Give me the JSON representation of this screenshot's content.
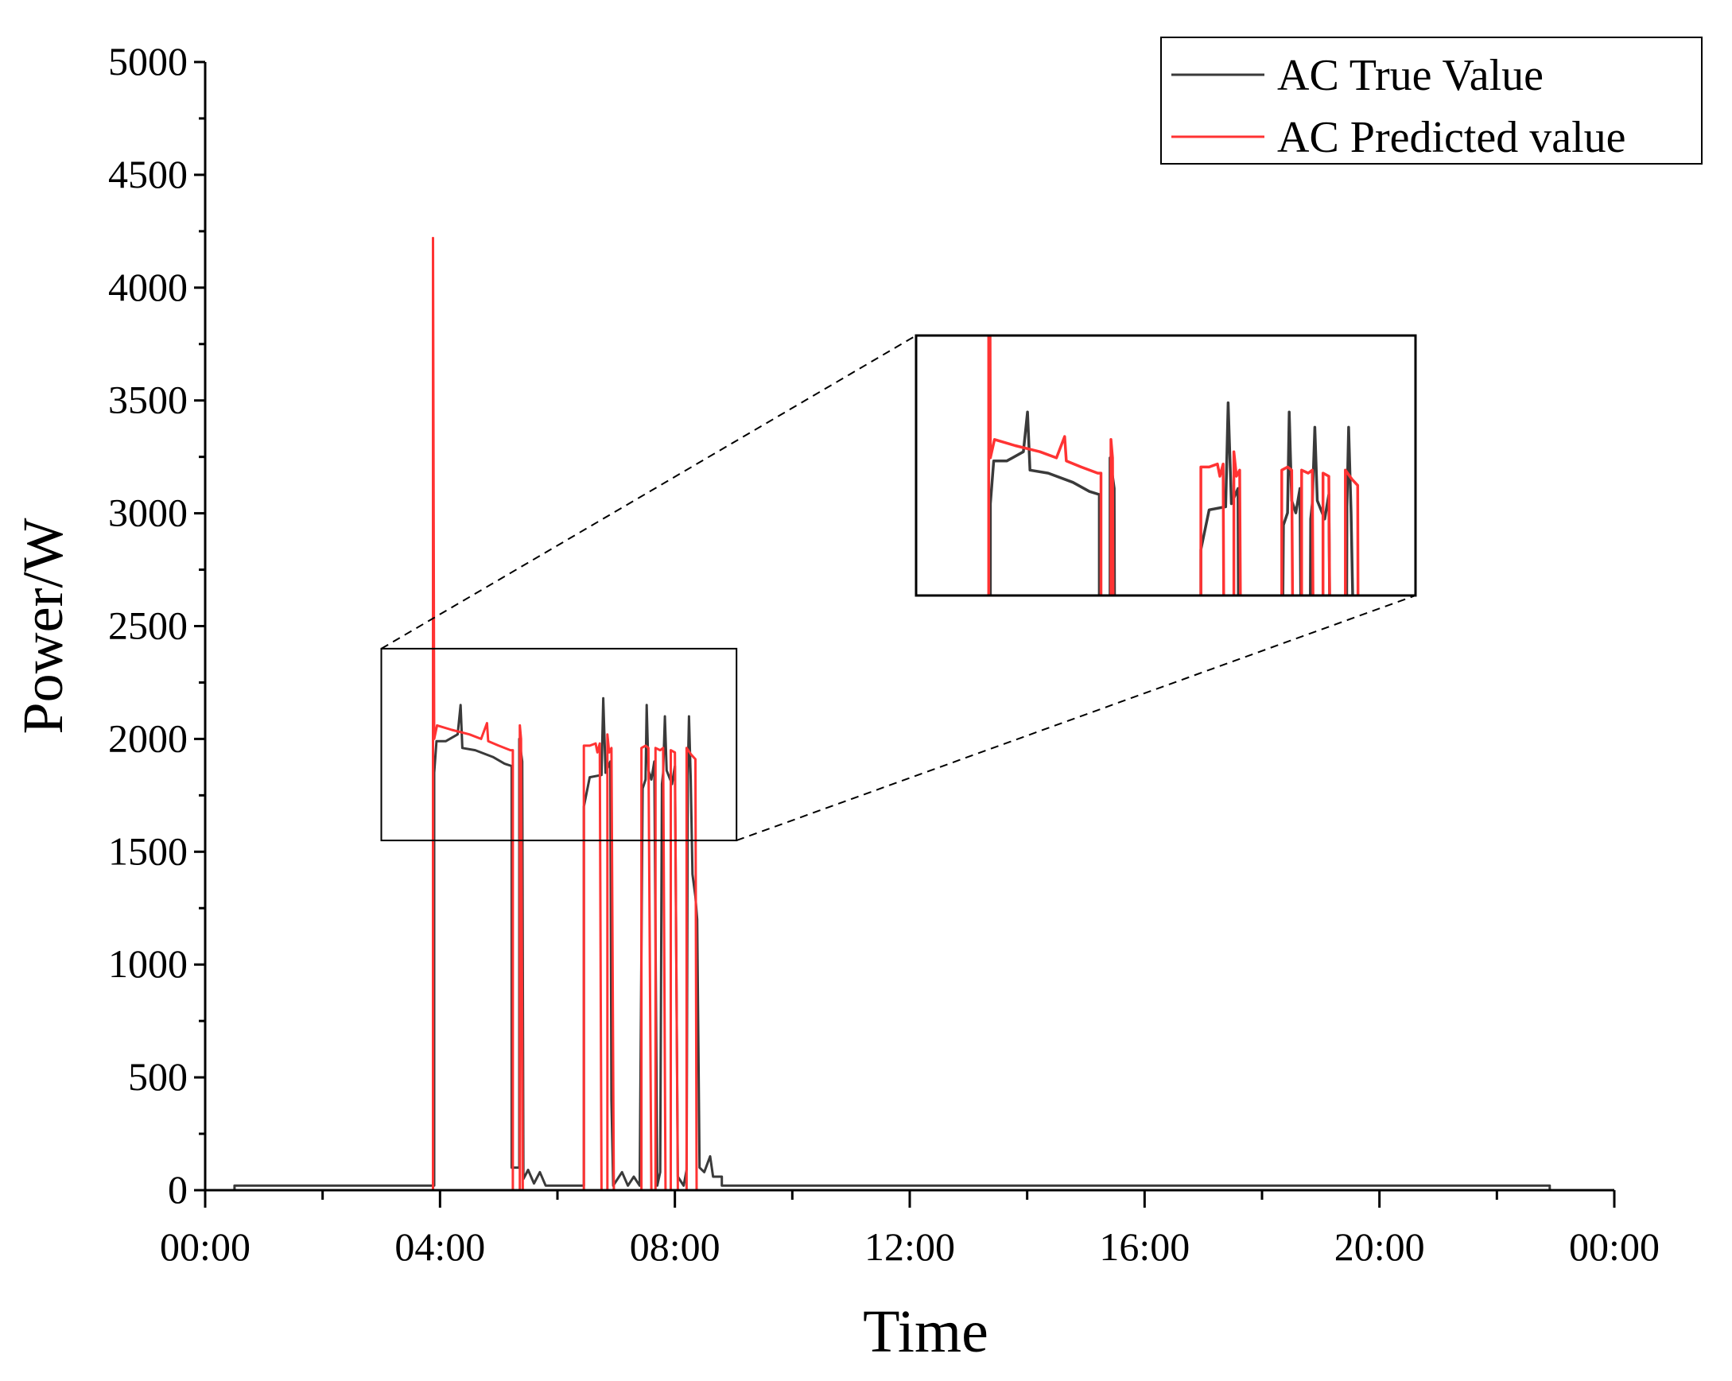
{
  "chart_data": {
    "type": "line",
    "title": "",
    "xlabel": "Time",
    "ylabel": "Power/W",
    "xlim_hours": [
      0,
      24
    ],
    "ylim": [
      0,
      5000
    ],
    "x_ticks": [
      {
        "hour": 0,
        "label": "00:00"
      },
      {
        "hour": 4,
        "label": "04:00"
      },
      {
        "hour": 8,
        "label": "08:00"
      },
      {
        "hour": 12,
        "label": "12:00"
      },
      {
        "hour": 16,
        "label": "16:00"
      },
      {
        "hour": 20,
        "label": "20:00"
      },
      {
        "hour": 24,
        "label": "00:00"
      }
    ],
    "y_ticks": [
      0,
      500,
      1000,
      1500,
      2000,
      2500,
      3000,
      3500,
      4000,
      4500,
      5000
    ],
    "grid": false,
    "legend_position": "top-right",
    "series": [
      {
        "name": "AC True Value",
        "color": "#3a3a3a",
        "points": [
          [
            0,
            0
          ],
          [
            0.5,
            0
          ],
          [
            0.5,
            20
          ],
          [
            3.9,
            20
          ],
          [
            3.9,
            1850
          ],
          [
            3.94,
            1990
          ],
          [
            4.1,
            1990
          ],
          [
            4.3,
            2020
          ],
          [
            4.35,
            2150
          ],
          [
            4.38,
            1960
          ],
          [
            4.6,
            1950
          ],
          [
            4.9,
            1920
          ],
          [
            5.1,
            1890
          ],
          [
            5.22,
            1880
          ],
          [
            5.22,
            100
          ],
          [
            5.35,
            100
          ],
          [
            5.35,
            2000
          ],
          [
            5.4,
            1900
          ],
          [
            5.42,
            50
          ],
          [
            5.5,
            90
          ],
          [
            5.6,
            30
          ],
          [
            5.7,
            80
          ],
          [
            5.8,
            20
          ],
          [
            6.45,
            20
          ],
          [
            6.45,
            1700
          ],
          [
            6.55,
            1830
          ],
          [
            6.75,
            1840
          ],
          [
            6.78,
            2180
          ],
          [
            6.82,
            1850
          ],
          [
            6.9,
            1900
          ],
          [
            6.92,
            400
          ],
          [
            6.95,
            20
          ],
          [
            7.1,
            80
          ],
          [
            7.2,
            20
          ],
          [
            7.3,
            60
          ],
          [
            7.4,
            20
          ],
          [
            7.45,
            1780
          ],
          [
            7.5,
            1820
          ],
          [
            7.52,
            2150
          ],
          [
            7.55,
            1860
          ],
          [
            7.6,
            1820
          ],
          [
            7.65,
            1900
          ],
          [
            7.7,
            20
          ],
          [
            7.75,
            80
          ],
          [
            7.78,
            1800
          ],
          [
            7.8,
            1850
          ],
          [
            7.83,
            2100
          ],
          [
            7.86,
            1860
          ],
          [
            7.95,
            1800
          ],
          [
            8.0,
            1880
          ],
          [
            8.05,
            60
          ],
          [
            8.15,
            20
          ],
          [
            8.2,
            90
          ],
          [
            8.22,
            1840
          ],
          [
            8.24,
            2100
          ],
          [
            8.27,
            1820
          ],
          [
            8.3,
            1400
          ],
          [
            8.35,
            1300
          ],
          [
            8.38,
            1200
          ],
          [
            8.42,
            100
          ],
          [
            8.5,
            80
          ],
          [
            8.6,
            150
          ],
          [
            8.65,
            60
          ],
          [
            8.8,
            60
          ],
          [
            8.8,
            20
          ],
          [
            22.9,
            20
          ],
          [
            22.9,
            0
          ],
          [
            24,
            0
          ]
        ]
      },
      {
        "name": "AC Predicted value",
        "color": "#ff3333",
        "points": [
          [
            0,
            0
          ],
          [
            3.88,
            0
          ],
          [
            3.88,
            4220
          ],
          [
            3.9,
            2000
          ],
          [
            3.95,
            2060
          ],
          [
            4.2,
            2040
          ],
          [
            4.5,
            2020
          ],
          [
            4.7,
            2000
          ],
          [
            4.8,
            2070
          ],
          [
            4.82,
            1990
          ],
          [
            5.0,
            1970
          ],
          [
            5.2,
            1950
          ],
          [
            5.24,
            1950
          ],
          [
            5.24,
            0
          ],
          [
            5.36,
            0
          ],
          [
            5.36,
            2060
          ],
          [
            5.38,
            2000
          ],
          [
            5.41,
            0
          ],
          [
            6.45,
            0
          ],
          [
            6.45,
            1970
          ],
          [
            6.55,
            1970
          ],
          [
            6.65,
            1980
          ],
          [
            6.68,
            1940
          ],
          [
            6.72,
            1980
          ],
          [
            6.75,
            0
          ],
          [
            6.85,
            0
          ],
          [
            6.85,
            2020
          ],
          [
            6.88,
            1940
          ],
          [
            6.92,
            1960
          ],
          [
            6.96,
            0
          ],
          [
            7.43,
            0
          ],
          [
            7.43,
            1960
          ],
          [
            7.5,
            1970
          ],
          [
            7.55,
            1960
          ],
          [
            7.6,
            0
          ],
          [
            7.67,
            0
          ],
          [
            7.67,
            1960
          ],
          [
            7.75,
            1950
          ],
          [
            7.8,
            1960
          ],
          [
            7.84,
            0
          ],
          [
            7.93,
            0
          ],
          [
            7.93,
            1950
          ],
          [
            8.0,
            1940
          ],
          [
            8.05,
            0
          ],
          [
            8.2,
            0
          ],
          [
            8.2,
            1960
          ],
          [
            8.28,
            1930
          ],
          [
            8.35,
            1910
          ],
          [
            8.37,
            0
          ],
          [
            24,
            0
          ]
        ]
      }
    ],
    "inset": {
      "description": "zoomed view of 03:50–08:40 region",
      "x_range_hours": [
        3.0,
        9.05
      ],
      "y_range": [
        1550,
        2400
      ]
    }
  }
}
